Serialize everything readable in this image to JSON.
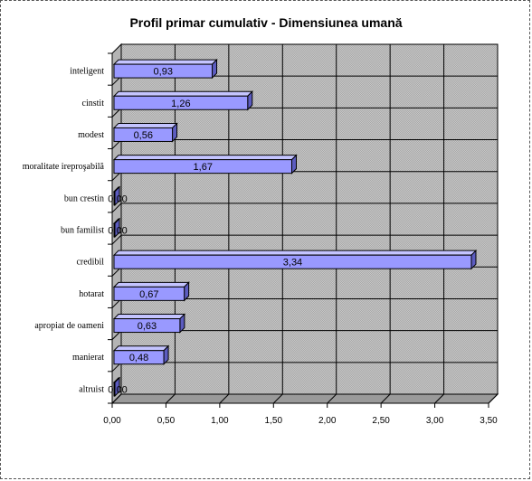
{
  "chart_data": {
    "type": "bar",
    "orientation": "horizontal",
    "title": "Profil primar cumulativ - Dimensiunea umană",
    "xlabel": "",
    "ylabel": "",
    "categories": [
      "inteligent",
      "cinstit",
      "modest",
      "moralitate ireproşabilă",
      "bun crestin",
      "bun familist",
      "credibil",
      "hotarat",
      "apropiat de oameni",
      "manierat",
      "altruist"
    ],
    "values": [
      0.93,
      1.26,
      0.56,
      1.67,
      0.0,
      0.0,
      3.34,
      0.67,
      0.63,
      0.48,
      0.0
    ],
    "value_labels": [
      "0,93",
      "1,26",
      "0,56",
      "1,67",
      "0,00",
      "0,00",
      "3,34",
      "0,67",
      "0,63",
      "0,48",
      "0,00"
    ],
    "xlim": [
      0,
      3.5
    ],
    "xticks": [
      0,
      0.5,
      1.0,
      1.5,
      2.0,
      2.5,
      3.0,
      3.5
    ],
    "xtick_labels": [
      "0,00",
      "0,50",
      "1,00",
      "1,50",
      "2,00",
      "2,50",
      "3,00",
      "3,50"
    ],
    "grid": true,
    "legend": "none",
    "bar_style": "3d",
    "colors": {
      "bar_front": "#9999ff",
      "bar_top": "#c4c4ff",
      "bar_side": "#5c5cc0",
      "wall": "#c0c0c0",
      "grid": "#000000"
    }
  }
}
